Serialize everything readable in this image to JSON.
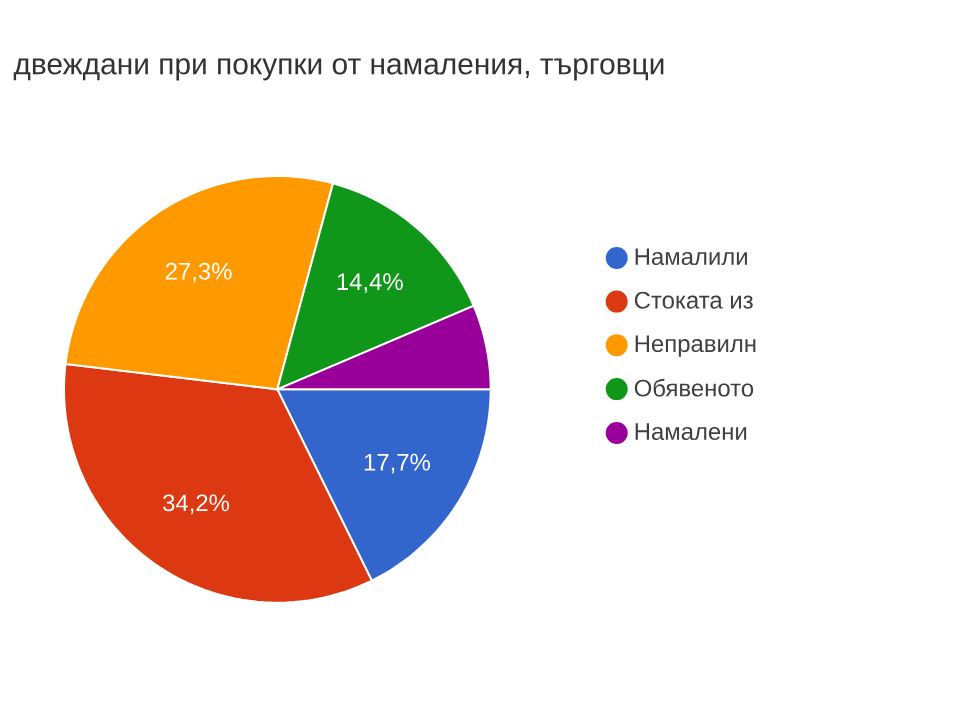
{
  "chart_data": {
    "type": "pie",
    "title": "двеждани при покупки от намаления, търговци",
    "categories": [
      "Намалили",
      "Стоката из",
      "Неправилн",
      "Обявеното",
      "Намалени"
    ],
    "values": [
      17.7,
      34.2,
      27.3,
      14.4,
      6.4
    ],
    "colors": [
      "#3366cc",
      "#dc3912",
      "#ff9900",
      "#109618",
      "#990099"
    ],
    "value_labels": [
      "17,7%",
      "34,2%",
      "27,3%",
      "14,4%",
      null
    ],
    "legend": "right"
  }
}
